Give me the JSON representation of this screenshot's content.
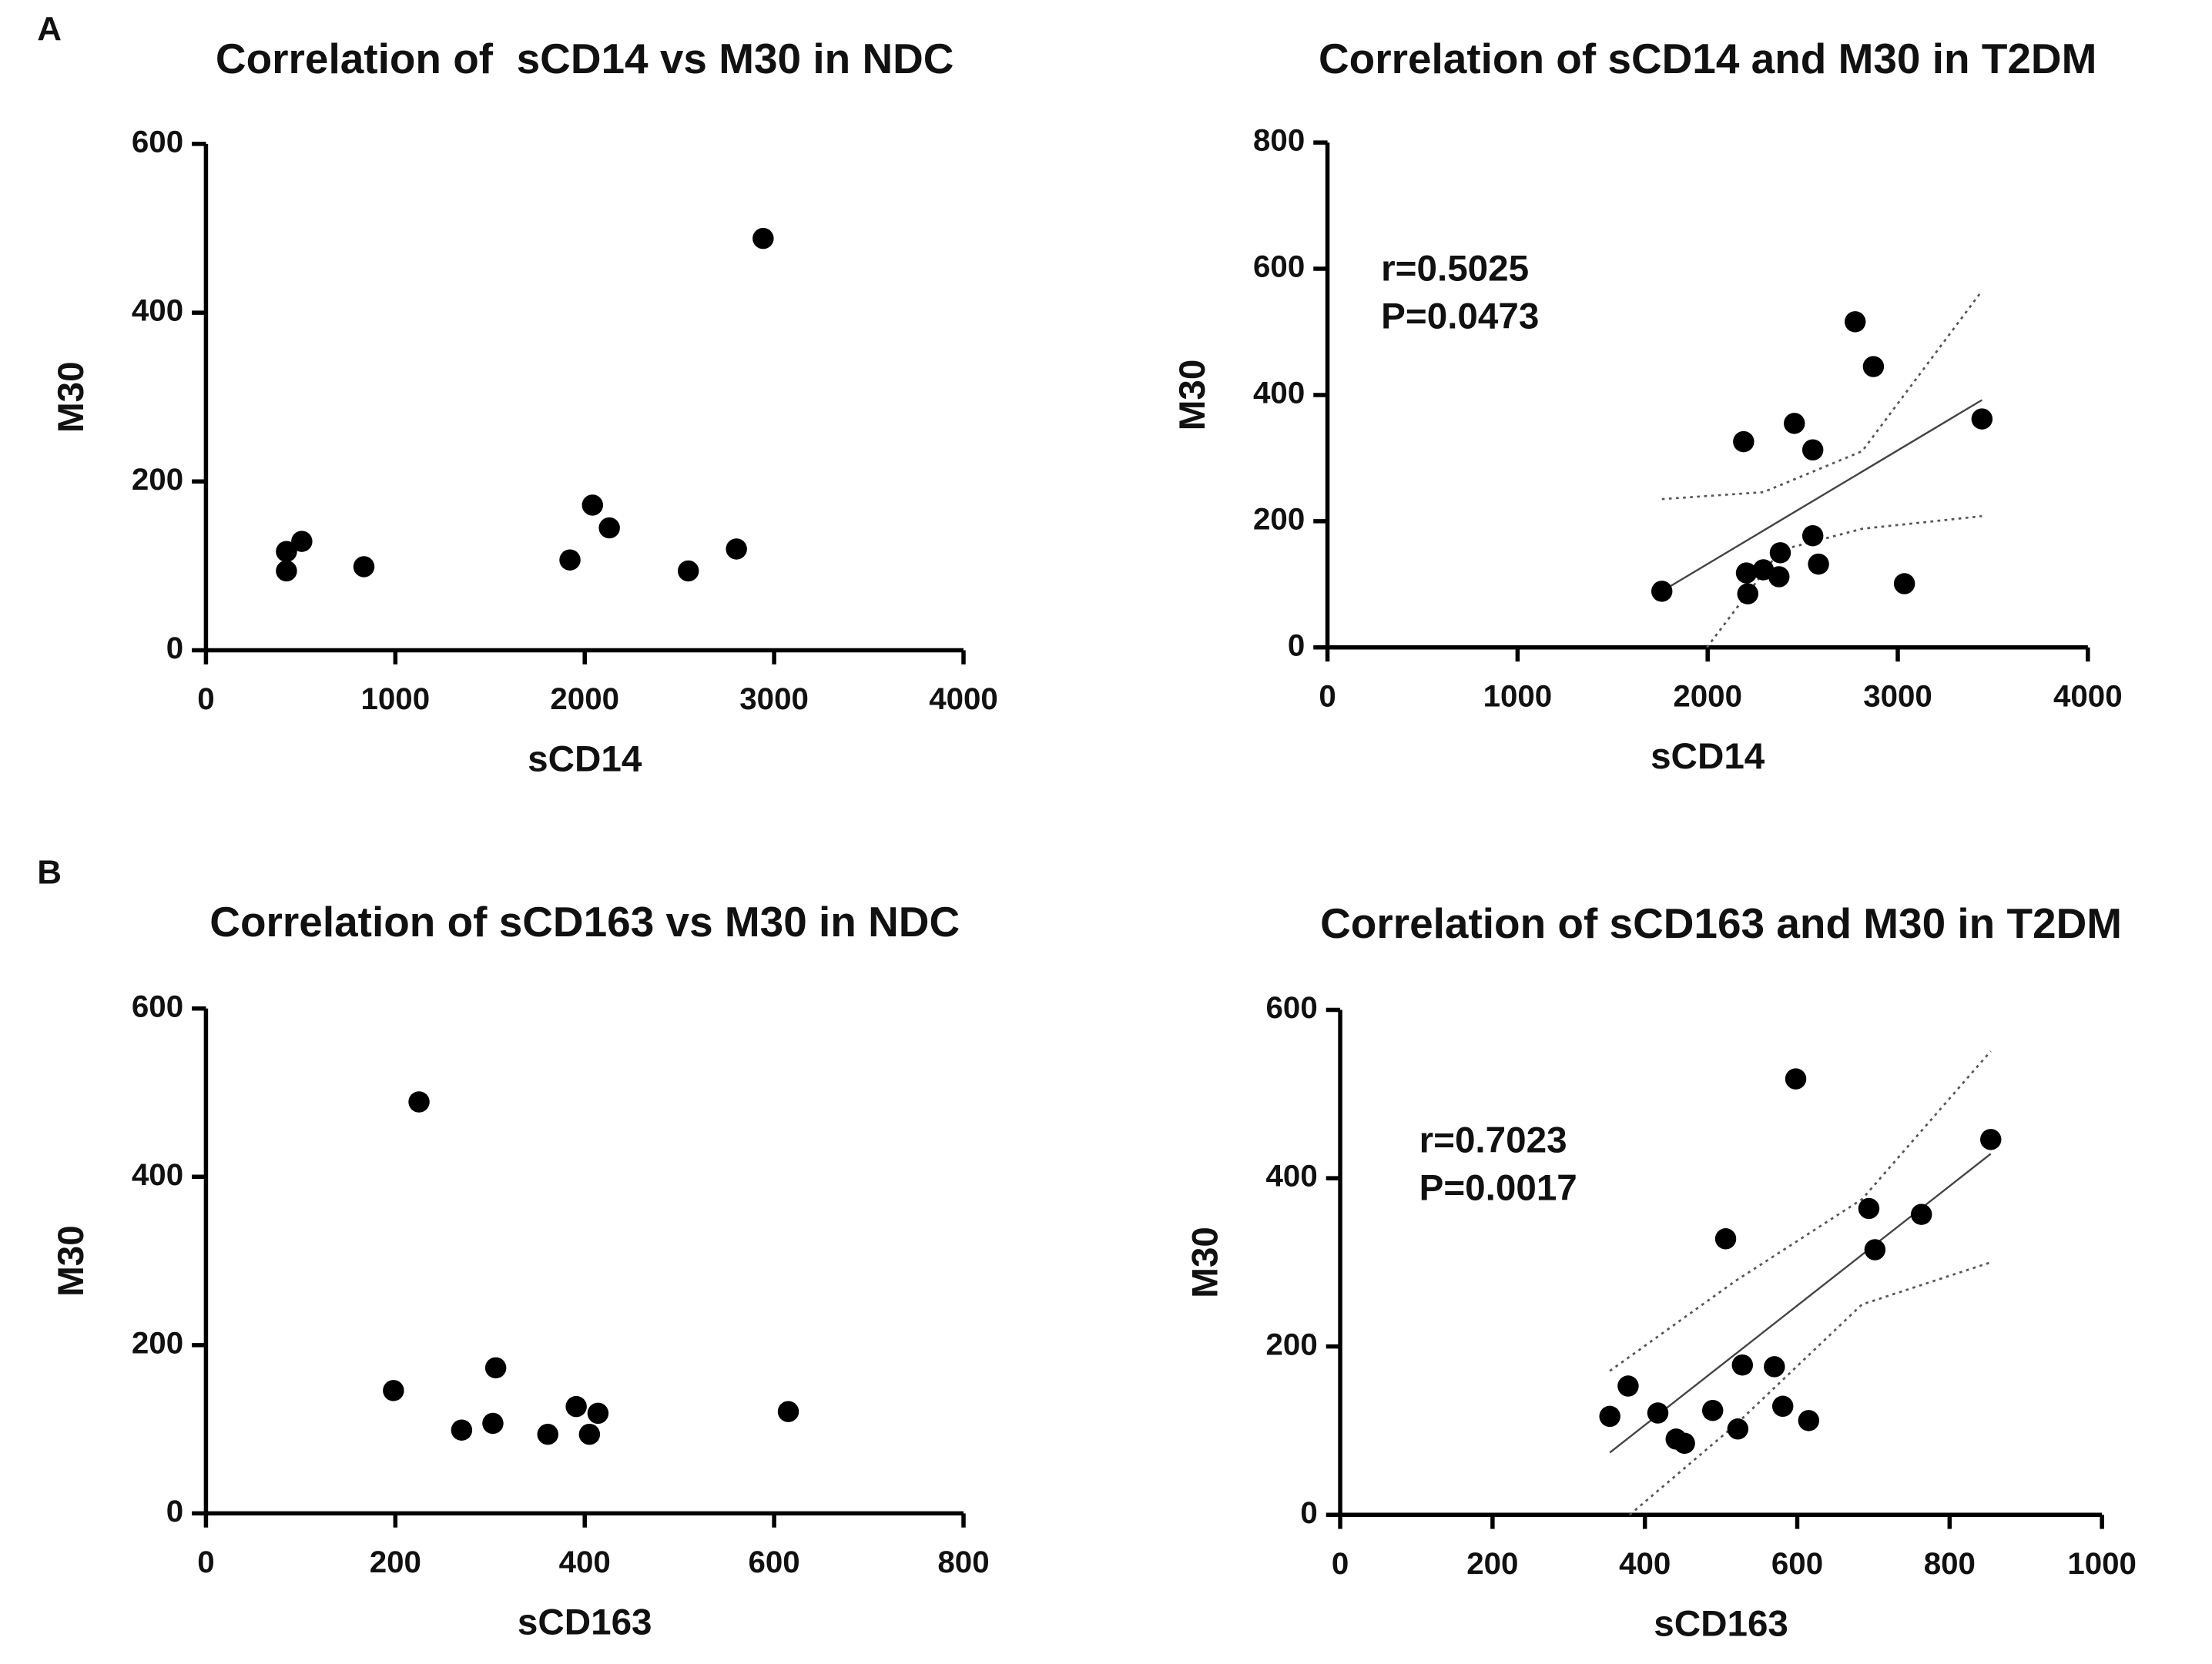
{
  "panels": [
    "A",
    "B"
  ],
  "chart_data": [
    {
      "type": "scatter",
      "title": "Correlation of  sCD14 vs M30 in NDC",
      "x_label": "sCD14",
      "y_label": "M30",
      "color": "#000000",
      "x": [
        425,
        425,
        506,
        834,
        1922,
        2041,
        2130,
        2547,
        2801,
        2942
      ],
      "y": [
        117,
        94,
        129,
        99,
        107,
        172,
        145,
        94,
        120,
        488
      ],
      "xlim": [
        0,
        4000
      ],
      "ylim": [
        0,
        600
      ],
      "xticks": [
        0,
        1000,
        2000,
        3000,
        4000
      ],
      "yticks": [
        0,
        200,
        400,
        600
      ]
    },
    {
      "type": "scatter",
      "title": "Correlation of sCD14 and M30 in T2DM",
      "x_label": "sCD14",
      "y_label": "M30",
      "color": "#000000",
      "x": [
        1759,
        2204,
        2211,
        2293,
        2382,
        2375,
        2189,
        2456,
        2553,
        2553,
        2583,
        2776,
        2872,
        3035,
        3443
      ],
      "y": [
        89,
        118,
        85,
        123,
        150,
        112,
        326,
        355,
        313,
        177,
        132,
        516,
        445,
        101,
        362
      ],
      "xlim": [
        0,
        4000
      ],
      "ylim": [
        0,
        800
      ],
      "xticks": [
        0,
        1000,
        2000,
        3000,
        4000
      ],
      "yticks": [
        0,
        200,
        400,
        600,
        800
      ],
      "annotations": [
        "r=0.5025",
        "P=0.0473"
      ],
      "fit": {
        "x": [
          1759,
          3443
        ],
        "y": [
          89,
          392
        ]
      },
      "ci_upper": {
        "x": [
          1759,
          2293,
          2813,
          3443
        ],
        "y": [
          235,
          246,
          311,
          565
        ]
      },
      "ci_lower": {
        "x": [
          1996,
          2382,
          2813,
          3443
        ],
        "y": [
          0,
          154,
          188,
          208
        ]
      }
    },
    {
      "type": "scatter",
      "title": "Correlation of sCD163 vs M30 in NDC",
      "x_label": "sCD163",
      "y_label": "M30",
      "color": "#000000",
      "x": [
        198,
        225,
        270,
        303,
        306,
        361,
        391,
        405,
        414,
        615
      ],
      "y": [
        146,
        489,
        99,
        107,
        173,
        94,
        127,
        94,
        119,
        121
      ],
      "xlim": [
        0,
        800
      ],
      "ylim": [
        0,
        600
      ],
      "xticks": [
        0,
        200,
        400,
        600,
        800
      ],
      "yticks": [
        0,
        200,
        400,
        600
      ]
    },
    {
      "type": "scatter",
      "title": "Correlation of sCD163 and M30 in T2DM",
      "x_label": "sCD163",
      "y_label": "M30",
      "color": "#000000",
      "x": [
        354,
        378,
        417,
        441,
        452,
        489,
        506,
        522,
        528,
        570,
        581,
        598,
        615,
        694,
        702,
        763,
        854
      ],
      "y": [
        117,
        153,
        121,
        90,
        85,
        124,
        328,
        102,
        178,
        176,
        129,
        518,
        112,
        364,
        315,
        357,
        446
      ],
      "xlim": [
        0,
        1000
      ],
      "ylim": [
        0,
        600
      ],
      "xticks": [
        0,
        200,
        400,
        600,
        800,
        1000
      ],
      "yticks": [
        0,
        200,
        400,
        600
      ],
      "annotations": [
        "r=0.7023",
        "P=0.0017"
      ],
      "fit": {
        "x": [
          354,
          854
        ],
        "y": [
          74,
          429
        ]
      },
      "ci_upper": {
        "x": [
          354,
          519,
          685,
          854
        ],
        "y": [
          171,
          278,
          375,
          551
        ]
      },
      "ci_lower": {
        "x": [
          380,
          519,
          685,
          854
        ],
        "y": [
          0,
          107,
          250,
          300
        ]
      }
    }
  ]
}
